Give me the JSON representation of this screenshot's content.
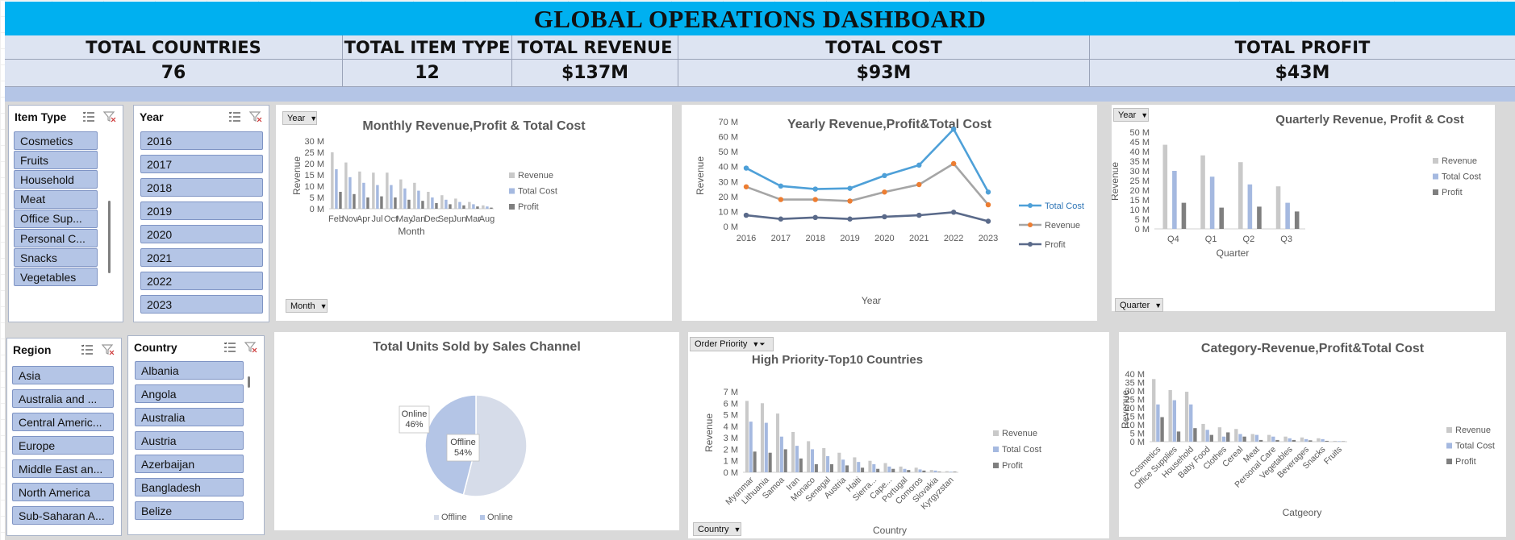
{
  "title": "GLOBAL OPERATIONS DASHBOARD",
  "kpis": {
    "labels": [
      "TOTAL COUNTRIES",
      "TOTAL ITEM TYPE",
      "TOTAL REVENUE",
      "TOTAL COST",
      "TOTAL PROFIT"
    ],
    "values": [
      "76",
      "12",
      "$137M",
      "$93M",
      "$43M"
    ]
  },
  "colors": {
    "title_bg": "#00b0f0",
    "kpi_bg": "#dde4f2",
    "band": "#b4c5e6",
    "slicer_item": "#b4c5e6",
    "revenue": "#c9c9c9",
    "cost": "#a5b9e0",
    "profit": "#7f7f7f",
    "line_cost": "#4ea0d8",
    "line_rev": "#a5a5a5",
    "line_profit": "#5a6a8a"
  },
  "slicers": {
    "item_type": {
      "title": "Item Type",
      "items": [
        "Cosmetics",
        "Fruits",
        "Household",
        "Meat",
        "Office Sup...",
        "Personal C...",
        "Snacks",
        "Vegetables"
      ]
    },
    "year": {
      "title": "Year",
      "items": [
        "2016",
        "2017",
        "2018",
        "2019",
        "2020",
        "2021",
        "2022",
        "2023"
      ]
    },
    "region": {
      "title": "Region",
      "items": [
        "Asia",
        "Australia and ...",
        "Central Americ...",
        "Europe",
        "Middle East an...",
        "North America",
        "Sub-Saharan A..."
      ]
    },
    "country": {
      "title": "Country",
      "items": [
        "Albania",
        "Angola",
        "Australia",
        "Austria",
        "Azerbaijan",
        "Bangladesh",
        "Belize"
      ]
    }
  },
  "pivot_buttons": {
    "monthly_year": "Year",
    "monthly_month": "Month",
    "quarter_year": "Year",
    "quarter_quarter": "Quarter",
    "order_priority": "Order Priority",
    "country": "Country"
  },
  "legend": {
    "revenue": "Revenue",
    "total_cost": "Total Cost",
    "profit": "Profit"
  },
  "chart_data": [
    {
      "id": "monthly",
      "type": "bar",
      "title": "Monthly Revenue,Profit & Total Cost",
      "xlabel": "Month",
      "ylabel": "Revenue",
      "yticks": [
        "0 M",
        "5 M",
        "10 M",
        "15 M",
        "20 M",
        "25 M",
        "30 M"
      ],
      "ylim": [
        0,
        30
      ],
      "categories": [
        "Feb",
        "Nov",
        "Apr",
        "Jul",
        "Oct",
        "May",
        "Jan",
        "Dec",
        "Sep",
        "Jun",
        "Mar",
        "Aug"
      ],
      "series": [
        {
          "name": "Revenue",
          "values": [
            25,
            20.5,
            16.5,
            16,
            16,
            13,
            11.5,
            7.5,
            6,
            4.5,
            3,
            1.5
          ]
        },
        {
          "name": "Total Cost",
          "values": [
            17.5,
            14,
            11.5,
            10.5,
            10.5,
            9,
            8,
            5,
            4,
            3,
            2,
            1
          ]
        },
        {
          "name": "Profit",
          "values": [
            7.5,
            6.5,
            5,
            5.5,
            5,
            4,
            3.5,
            2.5,
            2,
            1.5,
            1,
            0.5
          ]
        }
      ]
    },
    {
      "id": "yearly",
      "type": "line",
      "title": "Yearly Revenue,Profit&Total Cost",
      "xlabel": "Year",
      "ylabel": "Revenue",
      "yticks": [
        "0 M",
        "10 M",
        "20 M",
        "30 M",
        "40 M",
        "50 M",
        "60 M",
        "70 M"
      ],
      "ylim": [
        0,
        70
      ],
      "categories": [
        "2016",
        "2017",
        "2018",
        "2019",
        "2020",
        "2021",
        "2022",
        "2023"
      ],
      "series": [
        {
          "name": "Total Cost",
          "values": [
            39,
            27,
            25,
            25.5,
            34,
            41,
            65,
            23
          ]
        },
        {
          "name": "Revenue",
          "values": [
            26.5,
            18,
            18,
            17,
            23,
            28,
            42,
            14.5
          ]
        },
        {
          "name": "Profit",
          "values": [
            7.5,
            5,
            6,
            5,
            6.5,
            7.5,
            9.5,
            3.5
          ]
        }
      ]
    },
    {
      "id": "quarterly",
      "type": "bar",
      "title": "Quarterly Revenue, Profit & Cost",
      "xlabel": "Quarter",
      "ylabel": "Revenue",
      "yticks": [
        "0 M",
        "5 M",
        "10 M",
        "15 M",
        "20 M",
        "25 M",
        "30 M",
        "35 M",
        "40 M",
        "45 M",
        "50 M"
      ],
      "ylim": [
        0,
        50
      ],
      "categories": [
        "Q4",
        "Q1",
        "Q2",
        "Q3"
      ],
      "series": [
        {
          "name": "Revenue",
          "values": [
            43.5,
            38,
            34.5,
            22
          ]
        },
        {
          "name": "Total Cost",
          "values": [
            30,
            27,
            23,
            13.5
          ]
        },
        {
          "name": "Profit",
          "values": [
            13.5,
            11,
            11.5,
            9
          ]
        }
      ]
    },
    {
      "id": "channel",
      "type": "pie",
      "title": "Total Units Sold by Sales Channel",
      "categories": [
        "Offline",
        "Online"
      ],
      "values": [
        54,
        46
      ],
      "labels": [
        "Offline\n54%",
        "Online\n46%"
      ]
    },
    {
      "id": "priority",
      "type": "bar",
      "title": "High Priority-Top10 Countries",
      "xlabel": "Country",
      "ylabel": "Revenue",
      "yticks": [
        "0 M",
        "1 M",
        "2 M",
        "3 M",
        "4 M",
        "5 M",
        "6 M",
        "7 M"
      ],
      "ylim": [
        0,
        7
      ],
      "categories": [
        "Myanmar",
        "Lithuania",
        "Samoa",
        "Iran",
        "Monaco",
        "Senegal",
        "Austria",
        "Haiti",
        "Sierra...",
        "Cape...",
        "Portugal",
        "Comoros",
        "Slovakia",
        "Kyrgyzstan"
      ],
      "series": [
        {
          "name": "Revenue",
          "values": [
            6.2,
            6.0,
            5.1,
            3.5,
            2.7,
            2.1,
            1.7,
            1.3,
            1.0,
            0.8,
            0.5,
            0.4,
            0.2,
            0.1
          ]
        },
        {
          "name": "Total Cost",
          "values": [
            4.4,
            4.3,
            3.1,
            2.3,
            2.0,
            1.4,
            1.1,
            0.9,
            0.7,
            0.5,
            0.3,
            0.25,
            0.15,
            0.05
          ]
        },
        {
          "name": "Profit",
          "values": [
            1.8,
            1.7,
            2.0,
            1.2,
            0.7,
            0.7,
            0.6,
            0.4,
            0.3,
            0.3,
            0.2,
            0.15,
            0.05,
            0.05
          ]
        }
      ]
    },
    {
      "id": "category",
      "type": "bar",
      "title": "Category-Revenue,Profit&Total Cost",
      "xlabel": "Catgeory",
      "ylabel": "Revenue",
      "yticks": [
        "0 M",
        "5 M",
        "10 M",
        "15 M",
        "20 M",
        "25 M",
        "30 M",
        "35 M",
        "40 M"
      ],
      "ylim": [
        0,
        40
      ],
      "categories": [
        "Cosmetics",
        "Office Supplies",
        "Household",
        "Baby Food",
        "Clothes",
        "Cereal",
        "Meat",
        "Personal Care",
        "Vegetables",
        "Beverages",
        "Snacks",
        "Fruits"
      ],
      "series": [
        {
          "name": "Revenue",
          "values": [
            37,
            30.5,
            29.5,
            10.5,
            8.5,
            7.5,
            4.5,
            4,
            3,
            2.5,
            2,
            0.5
          ]
        },
        {
          "name": "Total Cost",
          "values": [
            22,
            24.5,
            22,
            7,
            3,
            4.5,
            4,
            3,
            2,
            1.5,
            1.5,
            0.3
          ]
        },
        {
          "name": "Profit",
          "values": [
            14.5,
            6,
            8,
            4,
            5.5,
            3,
            1,
            1,
            1,
            0.8,
            0.5,
            0.2
          ]
        }
      ]
    }
  ]
}
